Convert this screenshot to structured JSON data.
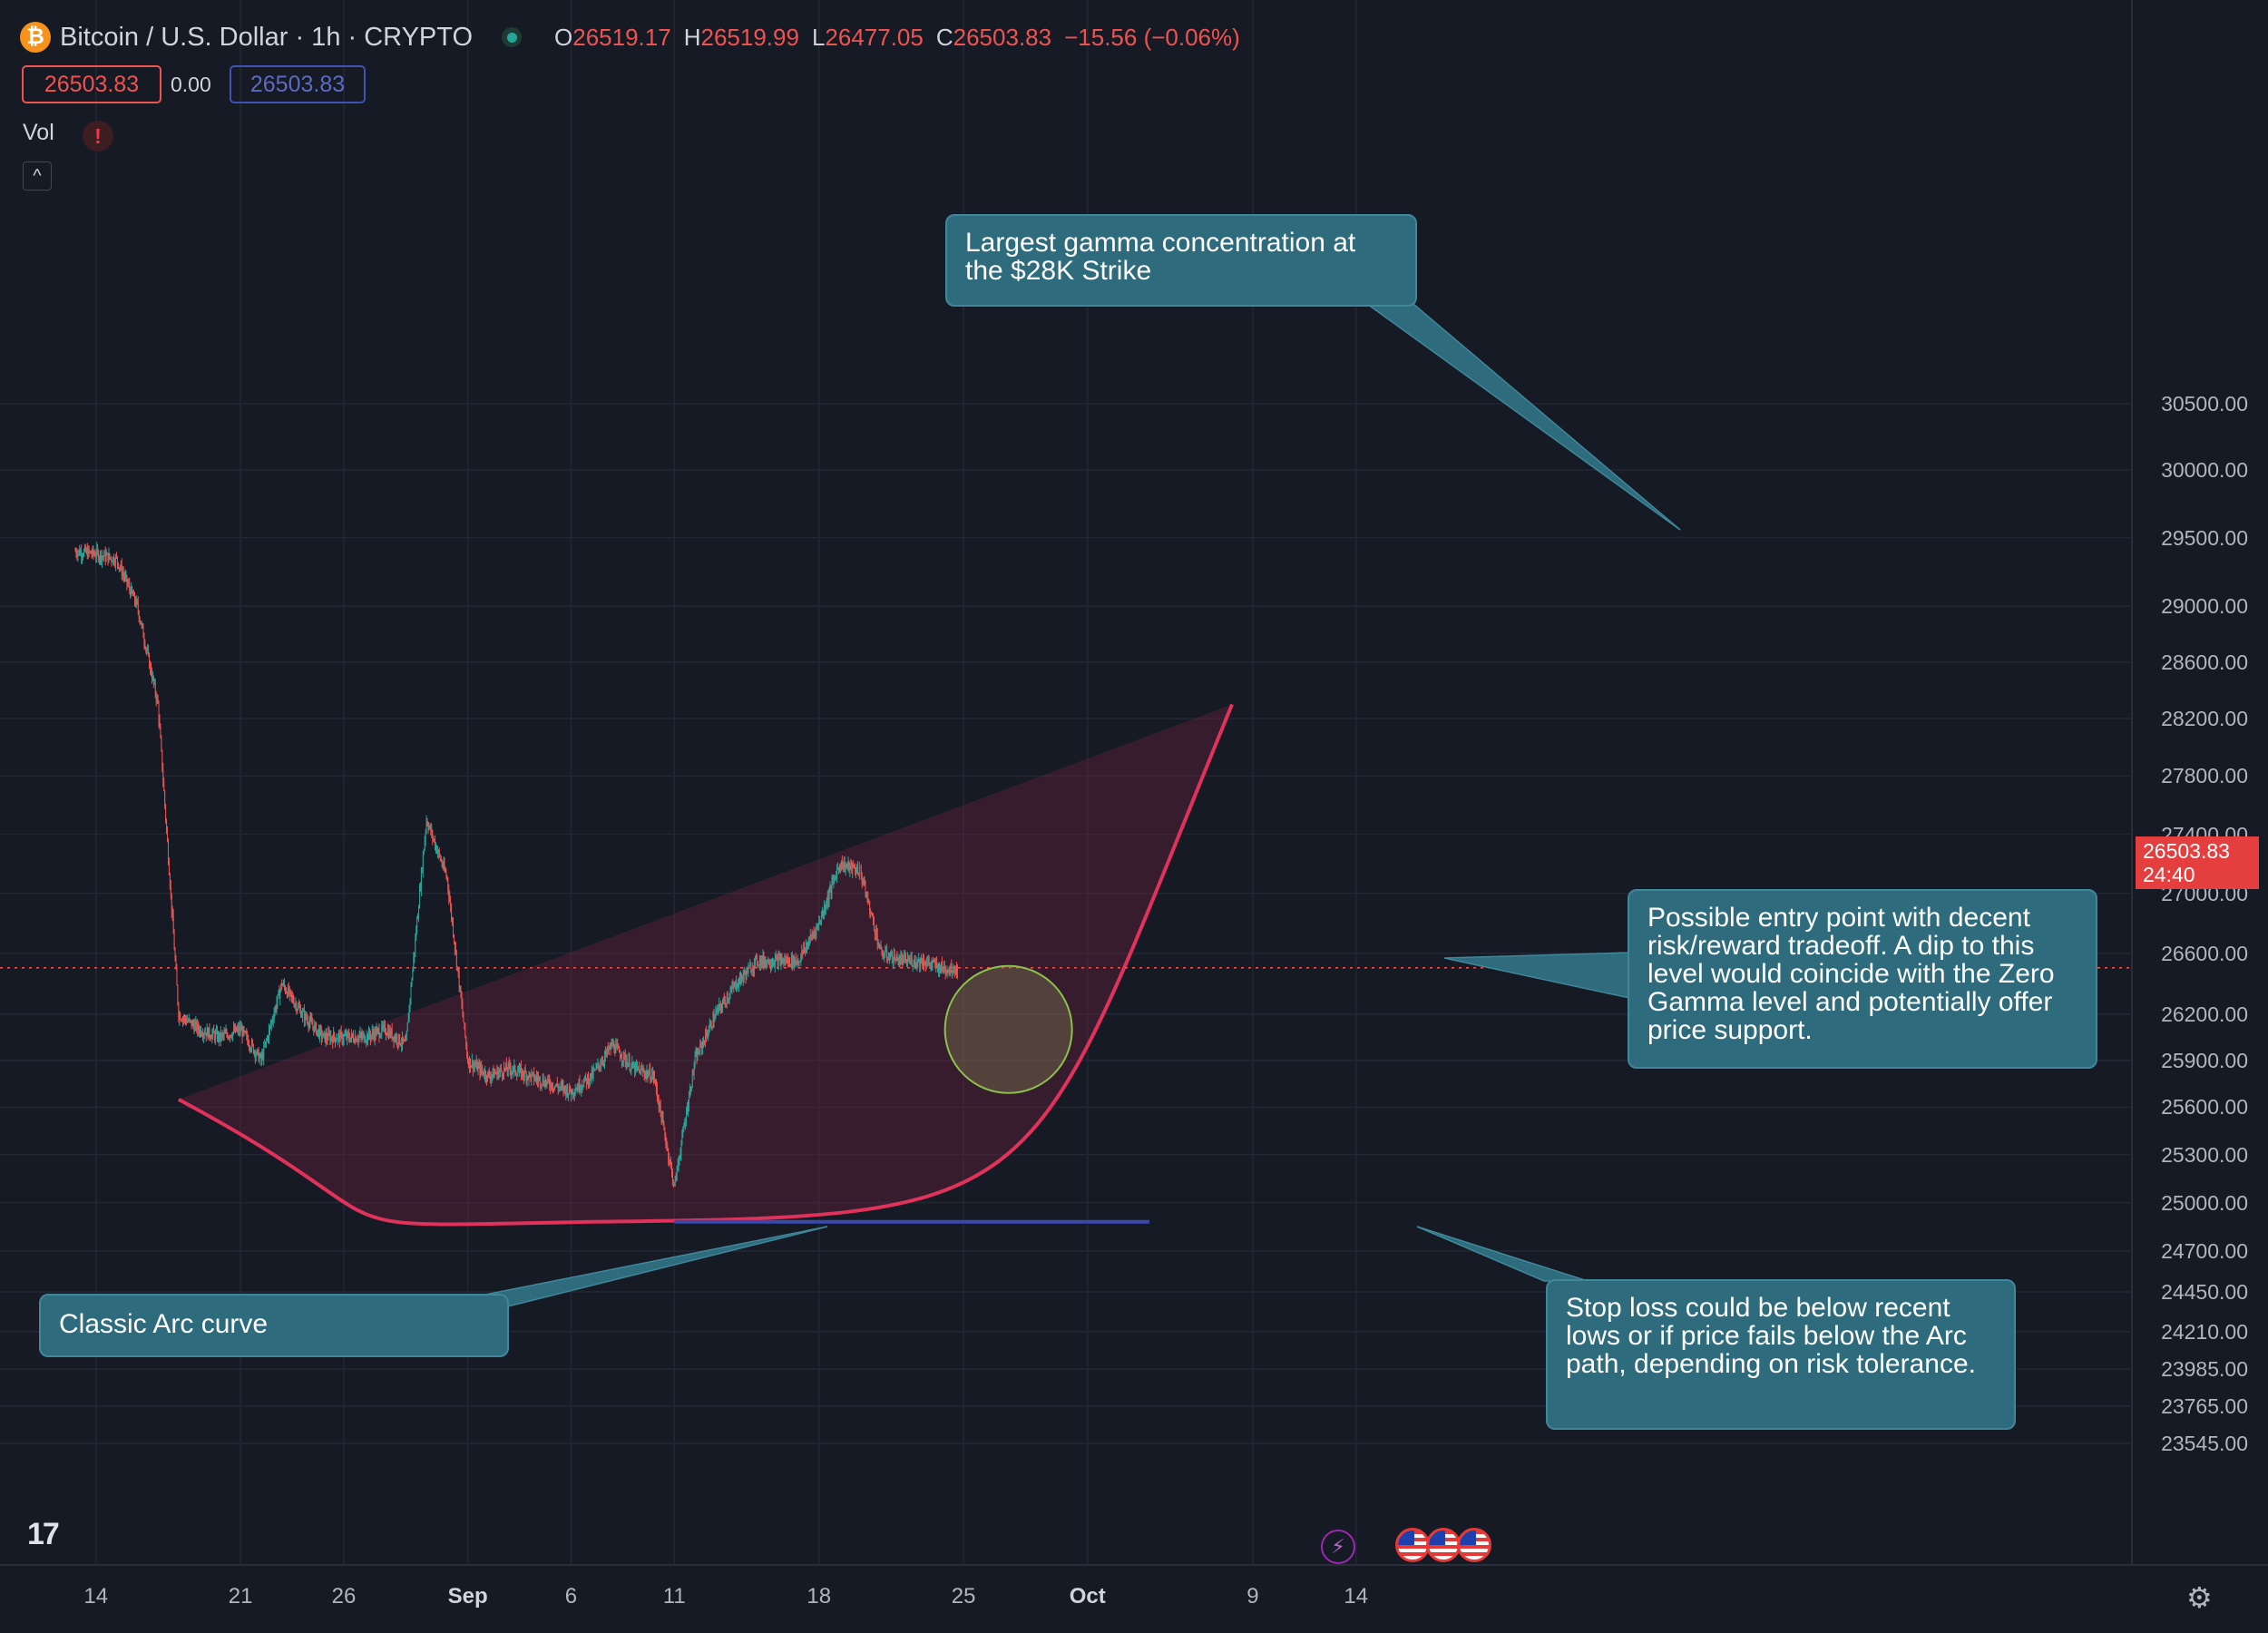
{
  "header": {
    "coin_glyph": "₿",
    "symbol": "Bitcoin / U.S. Dollar · 1h · CRYPTO",
    "open_label": "O",
    "open": "26519.17",
    "high_label": "H",
    "high": "26519.99",
    "low_label": "L",
    "low": "26477.05",
    "close_label": "C",
    "close": "26503.83",
    "change": "−15.56 (−0.06%)"
  },
  "order_panel": {
    "sell_price": "26503.83",
    "spread": "0.00",
    "buy_price": "26503.83"
  },
  "indicators": {
    "volume_label": "Vol",
    "warning_glyph": "!",
    "collapse_glyph": "^"
  },
  "last_price": {
    "value": "26503.83",
    "countdown": "24:40"
  },
  "icons": {
    "logo": "TV-logo-icon",
    "logo_glyph": "17",
    "events": "lightning-event-icon",
    "bolt_glyph": "⚡",
    "economic_events": "us-flag-icon",
    "settings": "gear-icon",
    "settings_glyph": "⚙"
  },
  "colors": {
    "background": "#161a25",
    "up": "#26a69a",
    "down": "#ef5350",
    "arc": "#e0325a",
    "support_line": "#3949ab",
    "callout": "#2d6b7d",
    "last_price_tag": "#e53e3e"
  },
  "annotations": {
    "gamma": "Largest gamma concentration at the $28K Strike",
    "entry": "Possible entry point with decent risk/reward tradeoff. A dip to this level would coincide with the Zero Gamma level and potentially offer price support.",
    "arc": "Classic Arc curve",
    "stop": "Stop loss could be below recent lows or if price fails below the Arc path, depending on risk tolerance."
  },
  "chart_data": {
    "type": "candlestick",
    "x_tick_labels": [
      "14",
      "21",
      "26",
      "Sep",
      "6",
      "11",
      "18",
      "25",
      "Oct",
      "9",
      "14"
    ],
    "y_tick_labels": [
      "30500.00",
      "30000.00",
      "29500.00",
      "29000.00",
      "28600.00",
      "28200.00",
      "27800.00",
      "27400.00",
      "27000.00",
      "26600.00",
      "26200.00",
      "25900.00",
      "25600.00",
      "25300.00",
      "25000.00",
      "24700.00",
      "24450.00",
      "24210.00",
      "23985.00",
      "23765.00",
      "23545.00"
    ],
    "x_range": [
      "2023-08-13",
      "2023-10-17"
    ],
    "y_scale": "log",
    "grid": true,
    "approx_price_path": [
      [
        "2023-08-13",
        29400
      ],
      [
        "2023-08-14",
        29380
      ],
      [
        "2023-08-15",
        29340
      ],
      [
        "2023-08-16",
        29000
      ],
      [
        "2023-08-17",
        28300
      ],
      [
        "2023-08-18",
        26200
      ],
      [
        "2023-08-19",
        26100
      ],
      [
        "2023-08-20",
        26050
      ],
      [
        "2023-08-21",
        26100
      ],
      [
        "2023-08-22",
        25900
      ],
      [
        "2023-08-23",
        26400
      ],
      [
        "2023-08-24",
        26200
      ],
      [
        "2023-08-25",
        26050
      ],
      [
        "2023-08-26",
        26050
      ],
      [
        "2023-08-27",
        26050
      ],
      [
        "2023-08-28",
        26100
      ],
      [
        "2023-08-29",
        26000
      ],
      [
        "2023-08-30",
        27500
      ],
      [
        "2023-08-31",
        27100
      ],
      [
        "2023-09-01",
        25900
      ],
      [
        "2023-09-02",
        25800
      ],
      [
        "2023-09-03",
        25850
      ],
      [
        "2023-09-04",
        25800
      ],
      [
        "2023-09-05",
        25750
      ],
      [
        "2023-09-06",
        25700
      ],
      [
        "2023-09-07",
        25800
      ],
      [
        "2023-09-08",
        26000
      ],
      [
        "2023-09-09",
        25850
      ],
      [
        "2023-09-10",
        25800
      ],
      [
        "2023-09-11",
        25100
      ],
      [
        "2023-09-12",
        25900
      ],
      [
        "2023-09-13",
        26200
      ],
      [
        "2023-09-14",
        26400
      ],
      [
        "2023-09-15",
        26550
      ],
      [
        "2023-09-16",
        26550
      ],
      [
        "2023-09-17",
        26550
      ],
      [
        "2023-09-18",
        26800
      ],
      [
        "2023-09-19",
        27200
      ],
      [
        "2023-09-20",
        27150
      ],
      [
        "2023-09-21",
        26600
      ],
      [
        "2023-09-22",
        26550
      ],
      [
        "2023-09-23",
        26550
      ],
      [
        "2023-09-24",
        26500
      ]
    ],
    "last_close": 26503.83,
    "arc_curve": {
      "start": [
        "2023-08-18",
        25650
      ],
      "bottom": [
        "2023-09-07",
        24880
      ],
      "end": [
        "2023-10-08",
        28300
      ]
    },
    "channel_upper_line": {
      "start": [
        "2023-08-18",
        25650
      ],
      "end": [
        "2023-10-08",
        28300
      ]
    },
    "support_line": {
      "price": 24880,
      "start": "2023-09-11",
      "end": "2023-10-04"
    },
    "entry_zone": {
      "date": "2023-09-27",
      "price": 26100
    }
  }
}
